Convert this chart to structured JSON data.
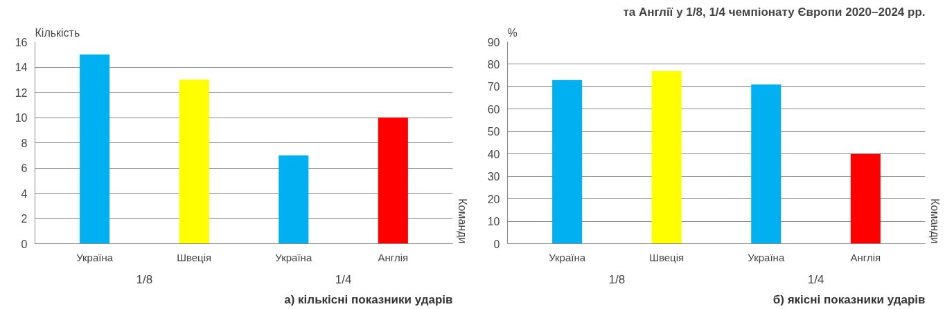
{
  "chart_data": [
    {
      "type": "bar",
      "ylabel": "Кількість",
      "y2label": "Команди",
      "categories": [
        "Україна",
        "Швеція",
        "Україна",
        "Англія"
      ],
      "values": [
        15,
        13,
        7,
        10
      ],
      "colors": [
        "#00b0f0",
        "#ffff00",
        "#00b0f0",
        "#ff0000"
      ],
      "ylim": [
        0,
        16
      ],
      "yticks": [
        0,
        2,
        4,
        6,
        8,
        10,
        12,
        14,
        16
      ],
      "grid": "y",
      "annotations": [
        "1/8",
        "1/4",
        "а) кількісні показники ударів"
      ]
    },
    {
      "type": "bar",
      "title": "та Англії у 1/8, 1/4 чемпіонату Європи 2020–2024 рр.",
      "ylabel": "%",
      "y2label": "Команди",
      "categories": [
        "Україна",
        "Швеція",
        "Україна",
        "Англія"
      ],
      "values": [
        73,
        77,
        71,
        40
      ],
      "colors": [
        "#00b0f0",
        "#ffff00",
        "#00b0f0",
        "#ff0000"
      ],
      "ylim": [
        0,
        90
      ],
      "yticks": [
        0,
        10,
        20,
        30,
        40,
        50,
        60,
        70,
        80,
        90
      ],
      "grid": "y",
      "annotations": [
        "1/8",
        "1/4",
        "б) якісні показники ударів"
      ]
    }
  ]
}
